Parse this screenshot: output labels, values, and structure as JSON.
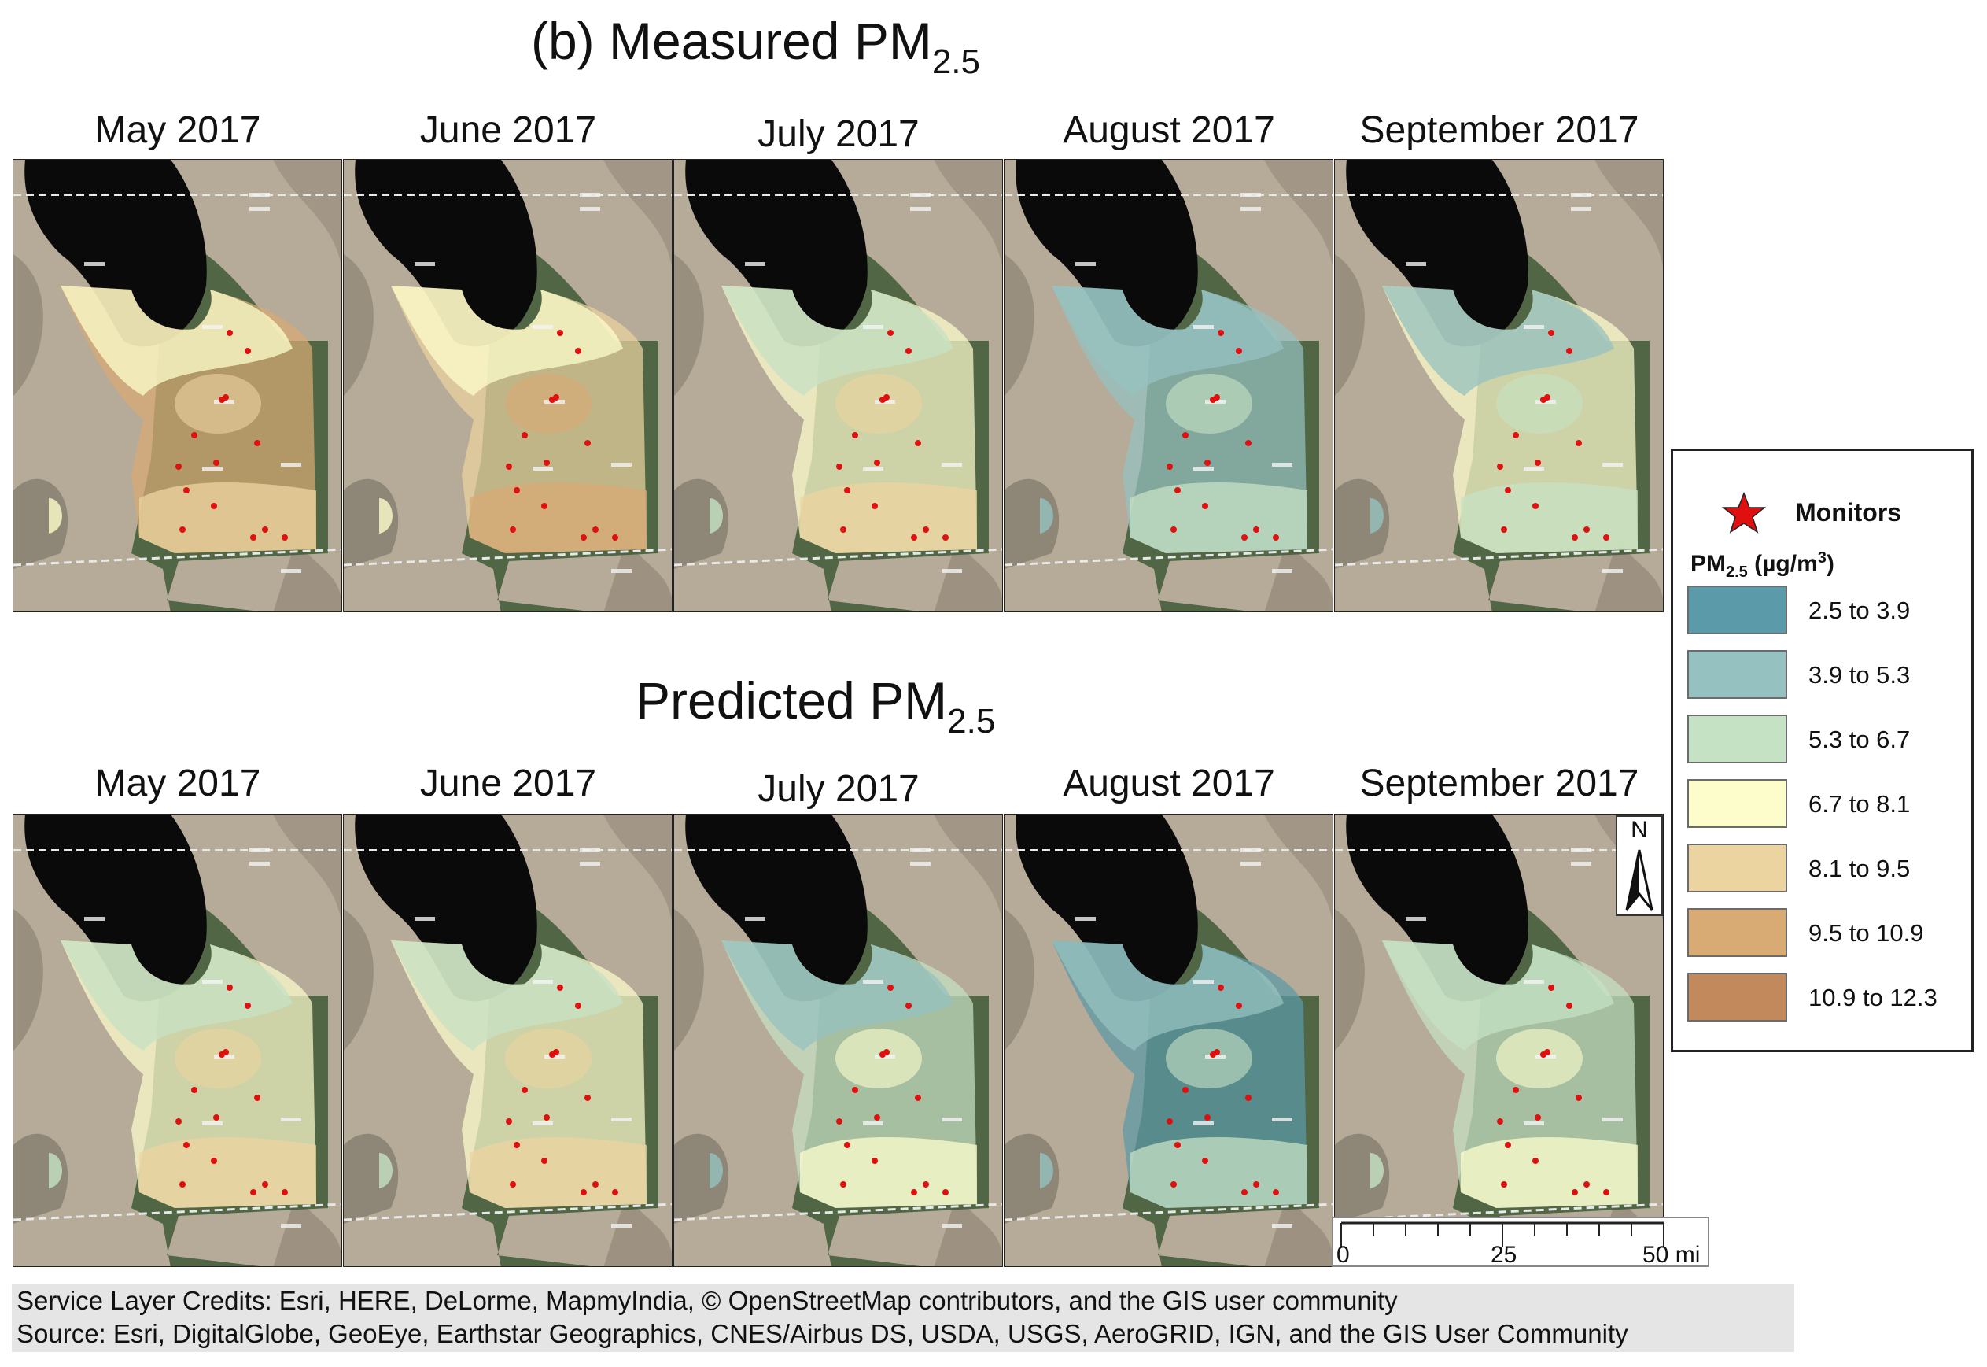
{
  "titles": {
    "measured_prefix": "(b)  Measured PM",
    "measured_sub": "2.5",
    "predicted_prefix": "Predicted PM",
    "predicted_sub": "2.5"
  },
  "months": [
    "May 2017",
    "June 2017",
    "July 2017",
    "August 2017",
    "September 2017"
  ],
  "legend": {
    "monitors_label": "Monitors",
    "pm_label_main": "PM",
    "pm_label_sub": "2.5",
    "pm_label_unit": " (µg/m",
    "pm_label_sup": "3",
    "pm_label_close": ")",
    "classes": [
      {
        "label": "2.5 to 3.9",
        "color": "#5b9aa8"
      },
      {
        "label": "3.9 to 5.3",
        "color": "#95c2c0"
      },
      {
        "label": "5.3 to 6.7",
        "color": "#c6e2c4"
      },
      {
        "label": "6.7 to 8.1",
        "color": "#fdfdcc"
      },
      {
        "label": "8.1 to 9.5",
        "color": "#ecd4a0"
      },
      {
        "label": "9.5 to 10.9",
        "color": "#d8aa74"
      },
      {
        "label": "10.9 to 12.3",
        "color": "#c28a5c"
      }
    ],
    "monitor_color": "#e01010"
  },
  "north_arrow": "N",
  "scale_bar": {
    "labels": [
      "0",
      "25",
      "50 mi"
    ]
  },
  "credits": {
    "line1": "Service Layer Credits: Esri, HERE, DeLorme, MapmyIndia, © OpenStreetMap contributors, and the GIS user community",
    "line2": "Source: Esri, DigitalGlobe, GeoEye, Earthstar Geographics, CNES/Airbus DS, USDA, USGS, AeroGRID, IGN, and the GIS User Community"
  },
  "maps": {
    "measured": [
      {
        "month": "May 2017",
        "dominant_class": "9.5 to 10.9",
        "secondary_class": "8.1 to 9.5",
        "north_class": "6.7 to 8.1"
      },
      {
        "month": "June 2017",
        "dominant_class": "8.1 to 9.5",
        "secondary_class": "9.5 to 10.9",
        "north_class": "6.7 to 8.1"
      },
      {
        "month": "July 2017",
        "dominant_class": "6.7 to 8.1",
        "secondary_class": "8.1 to 9.5",
        "north_class": "5.3 to 6.7"
      },
      {
        "month": "August 2017",
        "dominant_class": "3.9 to 5.3",
        "secondary_class": "5.3 to 6.7",
        "north_class": "3.9 to 5.3"
      },
      {
        "month": "September 2017",
        "dominant_class": "6.7 to 8.1",
        "secondary_class": "5.3 to 6.7",
        "north_class": "3.9 to 5.3"
      }
    ],
    "predicted": [
      {
        "month": "May 2017",
        "dominant_class": "6.7 to 8.1",
        "secondary_class": "8.1 to 9.5",
        "north_class": "5.3 to 6.7"
      },
      {
        "month": "June 2017",
        "dominant_class": "6.7 to 8.1",
        "secondary_class": "8.1 to 9.5",
        "north_class": "5.3 to 6.7"
      },
      {
        "month": "July 2017",
        "dominant_class": "5.3 to 6.7",
        "secondary_class": "6.7 to 8.1",
        "north_class": "3.9 to 5.3"
      },
      {
        "month": "August 2017",
        "dominant_class": "2.5 to 3.9",
        "secondary_class": "5.3 to 6.7",
        "north_class": "3.9 to 5.3"
      },
      {
        "month": "September 2017",
        "dominant_class": "5.3 to 6.7",
        "secondary_class": "6.7 to 8.1",
        "north_class": "5.3 to 6.7"
      }
    ]
  }
}
